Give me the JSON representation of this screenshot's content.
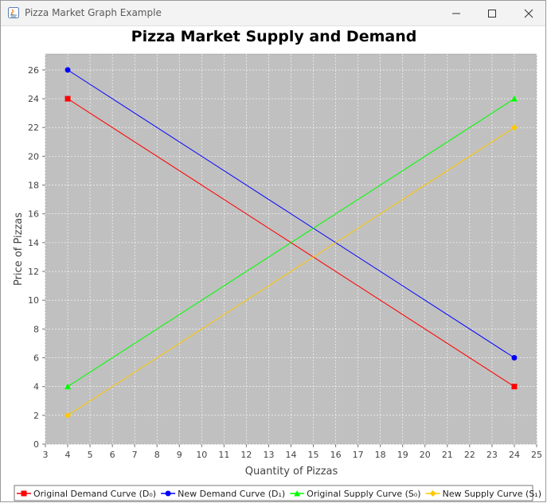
{
  "window": {
    "title": "Pizza Market Graph Example",
    "controls": [
      "minimize",
      "maximize",
      "close"
    ]
  },
  "chart_data": {
    "type": "line",
    "title": "Pizza Market Supply and Demand",
    "xlabel": "Quantity of Pizzas",
    "ylabel": "Price of Pizzas",
    "xlim": [
      3,
      25
    ],
    "ylim": [
      0,
      27.1
    ],
    "xticks": [
      3,
      4,
      5,
      6,
      7,
      8,
      9,
      10,
      11,
      12,
      13,
      14,
      15,
      16,
      17,
      18,
      19,
      20,
      21,
      22,
      23,
      24,
      25
    ],
    "yticks": [
      0,
      2,
      4,
      6,
      8,
      10,
      12,
      14,
      16,
      18,
      20,
      22,
      24,
      26
    ],
    "grid": true,
    "background": "#c0c0c0",
    "legend_position": "bottom",
    "series": [
      {
        "name": "Original Demand Curve (D₀)",
        "color": "#ff0000",
        "marker": "square",
        "points": [
          {
            "x": 4,
            "y": 24
          },
          {
            "x": 24,
            "y": 4
          }
        ]
      },
      {
        "name": "New Demand Curve (D₁)",
        "color": "#0000ff",
        "marker": "circle",
        "points": [
          {
            "x": 4,
            "y": 26
          },
          {
            "x": 24,
            "y": 6
          }
        ]
      },
      {
        "name": "Original Supply Curve (S₀)",
        "color": "#00ff00",
        "marker": "triangle",
        "points": [
          {
            "x": 4,
            "y": 4
          },
          {
            "x": 24,
            "y": 24
          }
        ]
      },
      {
        "name": "New Supply Curve (S₁)",
        "color": "#ffc800",
        "marker": "diamond",
        "points": [
          {
            "x": 4,
            "y": 2
          },
          {
            "x": 24,
            "y": 22
          }
        ]
      }
    ]
  }
}
